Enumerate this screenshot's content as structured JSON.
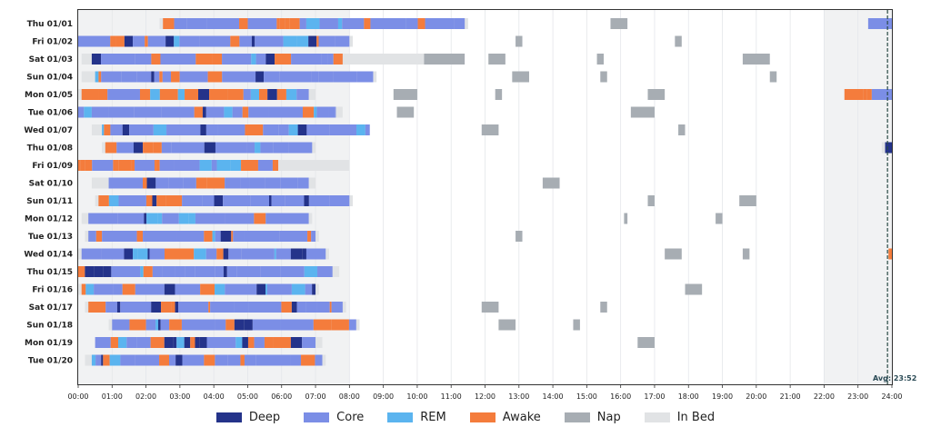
{
  "chart_data": {
    "type": "sleep-timeline",
    "title": "",
    "xlabel": "",
    "ylabel": "",
    "xlim": [
      0,
      24
    ],
    "x_ticks": [
      "00:00",
      "01:00",
      "02:00",
      "03:00",
      "04:00",
      "05:00",
      "06:00",
      "07:00",
      "08:00",
      "09:00",
      "10:00",
      "11:00",
      "12:00",
      "13:00",
      "14:00",
      "15:00",
      "16:00",
      "17:00",
      "18:00",
      "19:00",
      "20:00",
      "21:00",
      "22:00",
      "23:00",
      "24:00"
    ],
    "average_line": {
      "value_hours": 23.87,
      "label": "Avg: 23:52"
    },
    "colors": {
      "Deep": "#24338a",
      "Core": "#7b8ee6",
      "REM": "#5bb4ef",
      "Awake": "#f47c3c",
      "Nap": "#a7adb3",
      "In Bed": "#e1e3e5"
    },
    "legend": [
      "Deep",
      "Core",
      "REM",
      "Awake",
      "Nap",
      "In Bed"
    ],
    "rows": [
      {
        "label": "Thu 01/01",
        "start": 2.5,
        "end": 11.4,
        "in_bed": [
          [
            2.4,
            11.5
          ],
          [
            23.3,
            24.0
          ]
        ],
        "naps": [
          [
            15.7,
            16.2
          ]
        ],
        "late": [
          23.3,
          24.0
        ]
      },
      {
        "label": "Fri 01/02",
        "start": 0.0,
        "end": 8.0,
        "in_bed": [
          [
            0.0,
            8.1
          ]
        ],
        "naps": [
          [
            12.9,
            13.1
          ],
          [
            17.6,
            17.8
          ]
        ],
        "late": null
      },
      {
        "label": "Sat 01/03",
        "start": 0.4,
        "end": 7.8,
        "in_bed": [
          [
            0.1,
            10.2
          ]
        ],
        "naps": [
          [
            10.2,
            11.4
          ],
          [
            12.1,
            12.6
          ],
          [
            15.3,
            15.5
          ],
          [
            19.6,
            20.4
          ]
        ],
        "late": null
      },
      {
        "label": "Sun 01/04",
        "start": 0.5,
        "end": 8.7,
        "in_bed": [
          [
            0.1,
            8.8
          ]
        ],
        "naps": [
          [
            12.8,
            13.3
          ],
          [
            15.4,
            15.6
          ],
          [
            20.4,
            20.6
          ]
        ],
        "late": null
      },
      {
        "label": "Mon 01/05",
        "start": 0.1,
        "end": 6.8,
        "in_bed": [
          [
            0.0,
            7.0
          ],
          [
            22.6,
            24.0
          ]
        ],
        "naps": [
          [
            9.3,
            10.0
          ],
          [
            12.3,
            12.5
          ],
          [
            16.8,
            17.3
          ]
        ],
        "late": [
          22.6,
          24.0
        ]
      },
      {
        "label": "Tue 01/06",
        "start": 0.0,
        "end": 7.6,
        "in_bed": [
          [
            0.0,
            7.8
          ]
        ],
        "naps": [
          [
            9.4,
            9.9
          ],
          [
            16.3,
            17.0
          ]
        ],
        "late": null
      },
      {
        "label": "Wed 01/07",
        "start": 0.7,
        "end": 8.6,
        "in_bed": [
          [
            0.4,
            8.6
          ]
        ],
        "naps": [
          [
            11.9,
            12.4
          ],
          [
            17.7,
            17.9
          ]
        ],
        "late": null
      },
      {
        "label": "Thu 01/08",
        "start": 0.8,
        "end": 6.9,
        "in_bed": [
          [
            0.7,
            7.0
          ],
          [
            23.7,
            24.0
          ]
        ],
        "naps": [],
        "late": [
          23.8,
          24.0
        ]
      },
      {
        "label": "Fri 01/09",
        "start": 0.0,
        "end": 5.9,
        "in_bed": [
          [
            0.0,
            8.0
          ]
        ],
        "naps": [],
        "late": null
      },
      {
        "label": "Sat 01/10",
        "start": 0.9,
        "end": 6.8,
        "in_bed": [
          [
            0.4,
            7.0
          ]
        ],
        "naps": [
          [
            13.7,
            14.2
          ]
        ],
        "late": null
      },
      {
        "label": "Sun 01/11",
        "start": 0.6,
        "end": 8.0,
        "in_bed": [
          [
            0.5,
            8.1
          ]
        ],
        "naps": [
          [
            16.8,
            17.0
          ],
          [
            19.5,
            20.0
          ]
        ],
        "late": null
      },
      {
        "label": "Mon 01/12",
        "start": 0.3,
        "end": 6.8,
        "in_bed": [
          [
            0.1,
            6.9
          ]
        ],
        "naps": [
          [
            16.1,
            16.2
          ],
          [
            18.8,
            19.0
          ]
        ],
        "late": null
      },
      {
        "label": "Tue 01/13",
        "start": 0.3,
        "end": 7.0,
        "in_bed": [
          [
            0.2,
            7.1
          ]
        ],
        "naps": [
          [
            12.9,
            13.1
          ]
        ],
        "late": null
      },
      {
        "label": "Wed 01/14",
        "start": 0.1,
        "end": 7.3,
        "in_bed": [
          [
            0.0,
            7.4
          ]
        ],
        "naps": [
          [
            17.3,
            17.8
          ],
          [
            19.6,
            19.8
          ]
        ],
        "late": [
          23.9,
          24.0
        ]
      },
      {
        "label": "Thu 01/15",
        "start": 0.0,
        "end": 7.5,
        "in_bed": [
          [
            0.0,
            7.7
          ]
        ],
        "naps": [],
        "late": null
      },
      {
        "label": "Fri 01/16",
        "start": 0.1,
        "end": 7.0,
        "in_bed": [
          [
            0.0,
            7.1
          ]
        ],
        "naps": [
          [
            17.9,
            18.4
          ]
        ],
        "late": null
      },
      {
        "label": "Sat 01/17",
        "start": 0.3,
        "end": 7.8,
        "in_bed": [
          [
            0.2,
            7.9
          ]
        ],
        "naps": [
          [
            11.9,
            12.4
          ],
          [
            15.4,
            15.6
          ]
        ],
        "late": null
      },
      {
        "label": "Sun 01/18",
        "start": 1.0,
        "end": 8.2,
        "in_bed": [
          [
            0.9,
            8.3
          ]
        ],
        "naps": [
          [
            12.4,
            12.9
          ],
          [
            14.6,
            14.8
          ]
        ],
        "late": null
      },
      {
        "label": "Mon 01/19",
        "start": 0.5,
        "end": 7.0,
        "in_bed": [
          [
            0.5,
            7.2
          ]
        ],
        "naps": [
          [
            16.5,
            17.0
          ]
        ],
        "late": null
      },
      {
        "label": "Tue 01/20",
        "start": 0.4,
        "end": 7.2,
        "in_bed": [
          [
            0.2,
            7.3
          ]
        ],
        "naps": [],
        "late": null
      }
    ]
  }
}
